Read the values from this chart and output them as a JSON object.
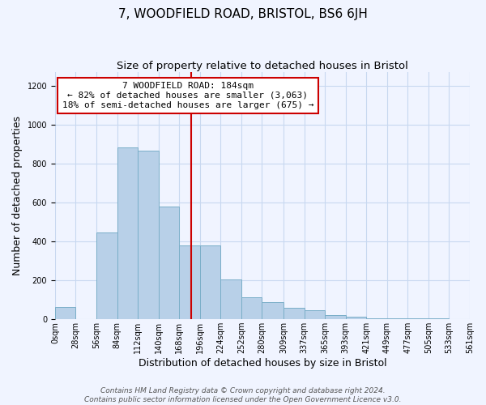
{
  "title": "7, WOODFIELD ROAD, BRISTOL, BS6 6JH",
  "subtitle": "Size of property relative to detached houses in Bristol",
  "xlabel": "Distribution of detached houses by size in Bristol",
  "ylabel": "Number of detached properties",
  "bin_edges": [
    0,
    28,
    56,
    84,
    112,
    140,
    168,
    196,
    224,
    252,
    280,
    309,
    337,
    365,
    393,
    421,
    449,
    477,
    505,
    533,
    561
  ],
  "bin_labels": [
    "0sqm",
    "28sqm",
    "56sqm",
    "84sqm",
    "112sqm",
    "140sqm",
    "168sqm",
    "196sqm",
    "224sqm",
    "252sqm",
    "280sqm",
    "309sqm",
    "337sqm",
    "365sqm",
    "393sqm",
    "421sqm",
    "449sqm",
    "477sqm",
    "505sqm",
    "533sqm",
    "561sqm"
  ],
  "counts": [
    65,
    0,
    445,
    885,
    865,
    580,
    380,
    380,
    205,
    115,
    90,
    60,
    45,
    20,
    15,
    5,
    5,
    5,
    3,
    2
  ],
  "bar_color": "#b8d0e8",
  "bar_edge_color": "#7aaec8",
  "vline_color": "#cc0000",
  "vline_x": 184,
  "annotation_title": "7 WOODFIELD ROAD: 184sqm",
  "annotation_line1": "← 82% of detached houses are smaller (3,063)",
  "annotation_line2": "18% of semi-detached houses are larger (675) →",
  "annotation_box_color": "#ffffff",
  "annotation_box_edge_color": "#cc0000",
  "ylim": [
    0,
    1270
  ],
  "footer1": "Contains HM Land Registry data © Crown copyright and database right 2024.",
  "footer2": "Contains public sector information licensed under the Open Government Licence v3.0.",
  "bg_color": "#f0f4ff",
  "grid_color": "#c8d8f0",
  "title_fontsize": 11,
  "subtitle_fontsize": 9.5,
  "axis_label_fontsize": 9,
  "tick_fontsize": 7,
  "footer_fontsize": 6.5,
  "annotation_fontsize": 8
}
